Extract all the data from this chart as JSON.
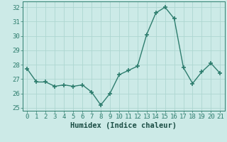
{
  "x": [
    0,
    1,
    2,
    3,
    4,
    5,
    6,
    7,
    8,
    9,
    10,
    11,
    12,
    13,
    14,
    15,
    16,
    17,
    18,
    19,
    20,
    21
  ],
  "y": [
    27.7,
    26.8,
    26.8,
    26.5,
    26.6,
    26.5,
    26.6,
    26.1,
    25.2,
    26.0,
    27.3,
    27.6,
    27.9,
    30.1,
    31.6,
    32.0,
    31.2,
    27.8,
    26.7,
    27.5,
    28.1,
    27.4
  ],
  "line_color": "#2e7d6e",
  "marker": "+",
  "marker_size": 4,
  "marker_lw": 1.2,
  "bg_color": "#cceae7",
  "grid_color": "#add6d1",
  "tick_color": "#2e7d6e",
  "xlabel": "Humidex (Indice chaleur)",
  "xlabel_color": "#1a4d44",
  "xlabel_fontsize": 7.5,
  "ylim": [
    24.8,
    32.4
  ],
  "xlim": [
    -0.5,
    21.5
  ],
  "yticks": [
    25,
    26,
    27,
    28,
    29,
    30,
    31,
    32
  ],
  "xticks": [
    0,
    1,
    2,
    3,
    4,
    5,
    6,
    7,
    8,
    9,
    10,
    11,
    12,
    13,
    14,
    15,
    16,
    17,
    18,
    19,
    20,
    21
  ],
  "tick_label_fontsize": 6.5,
  "line_width": 1.0
}
